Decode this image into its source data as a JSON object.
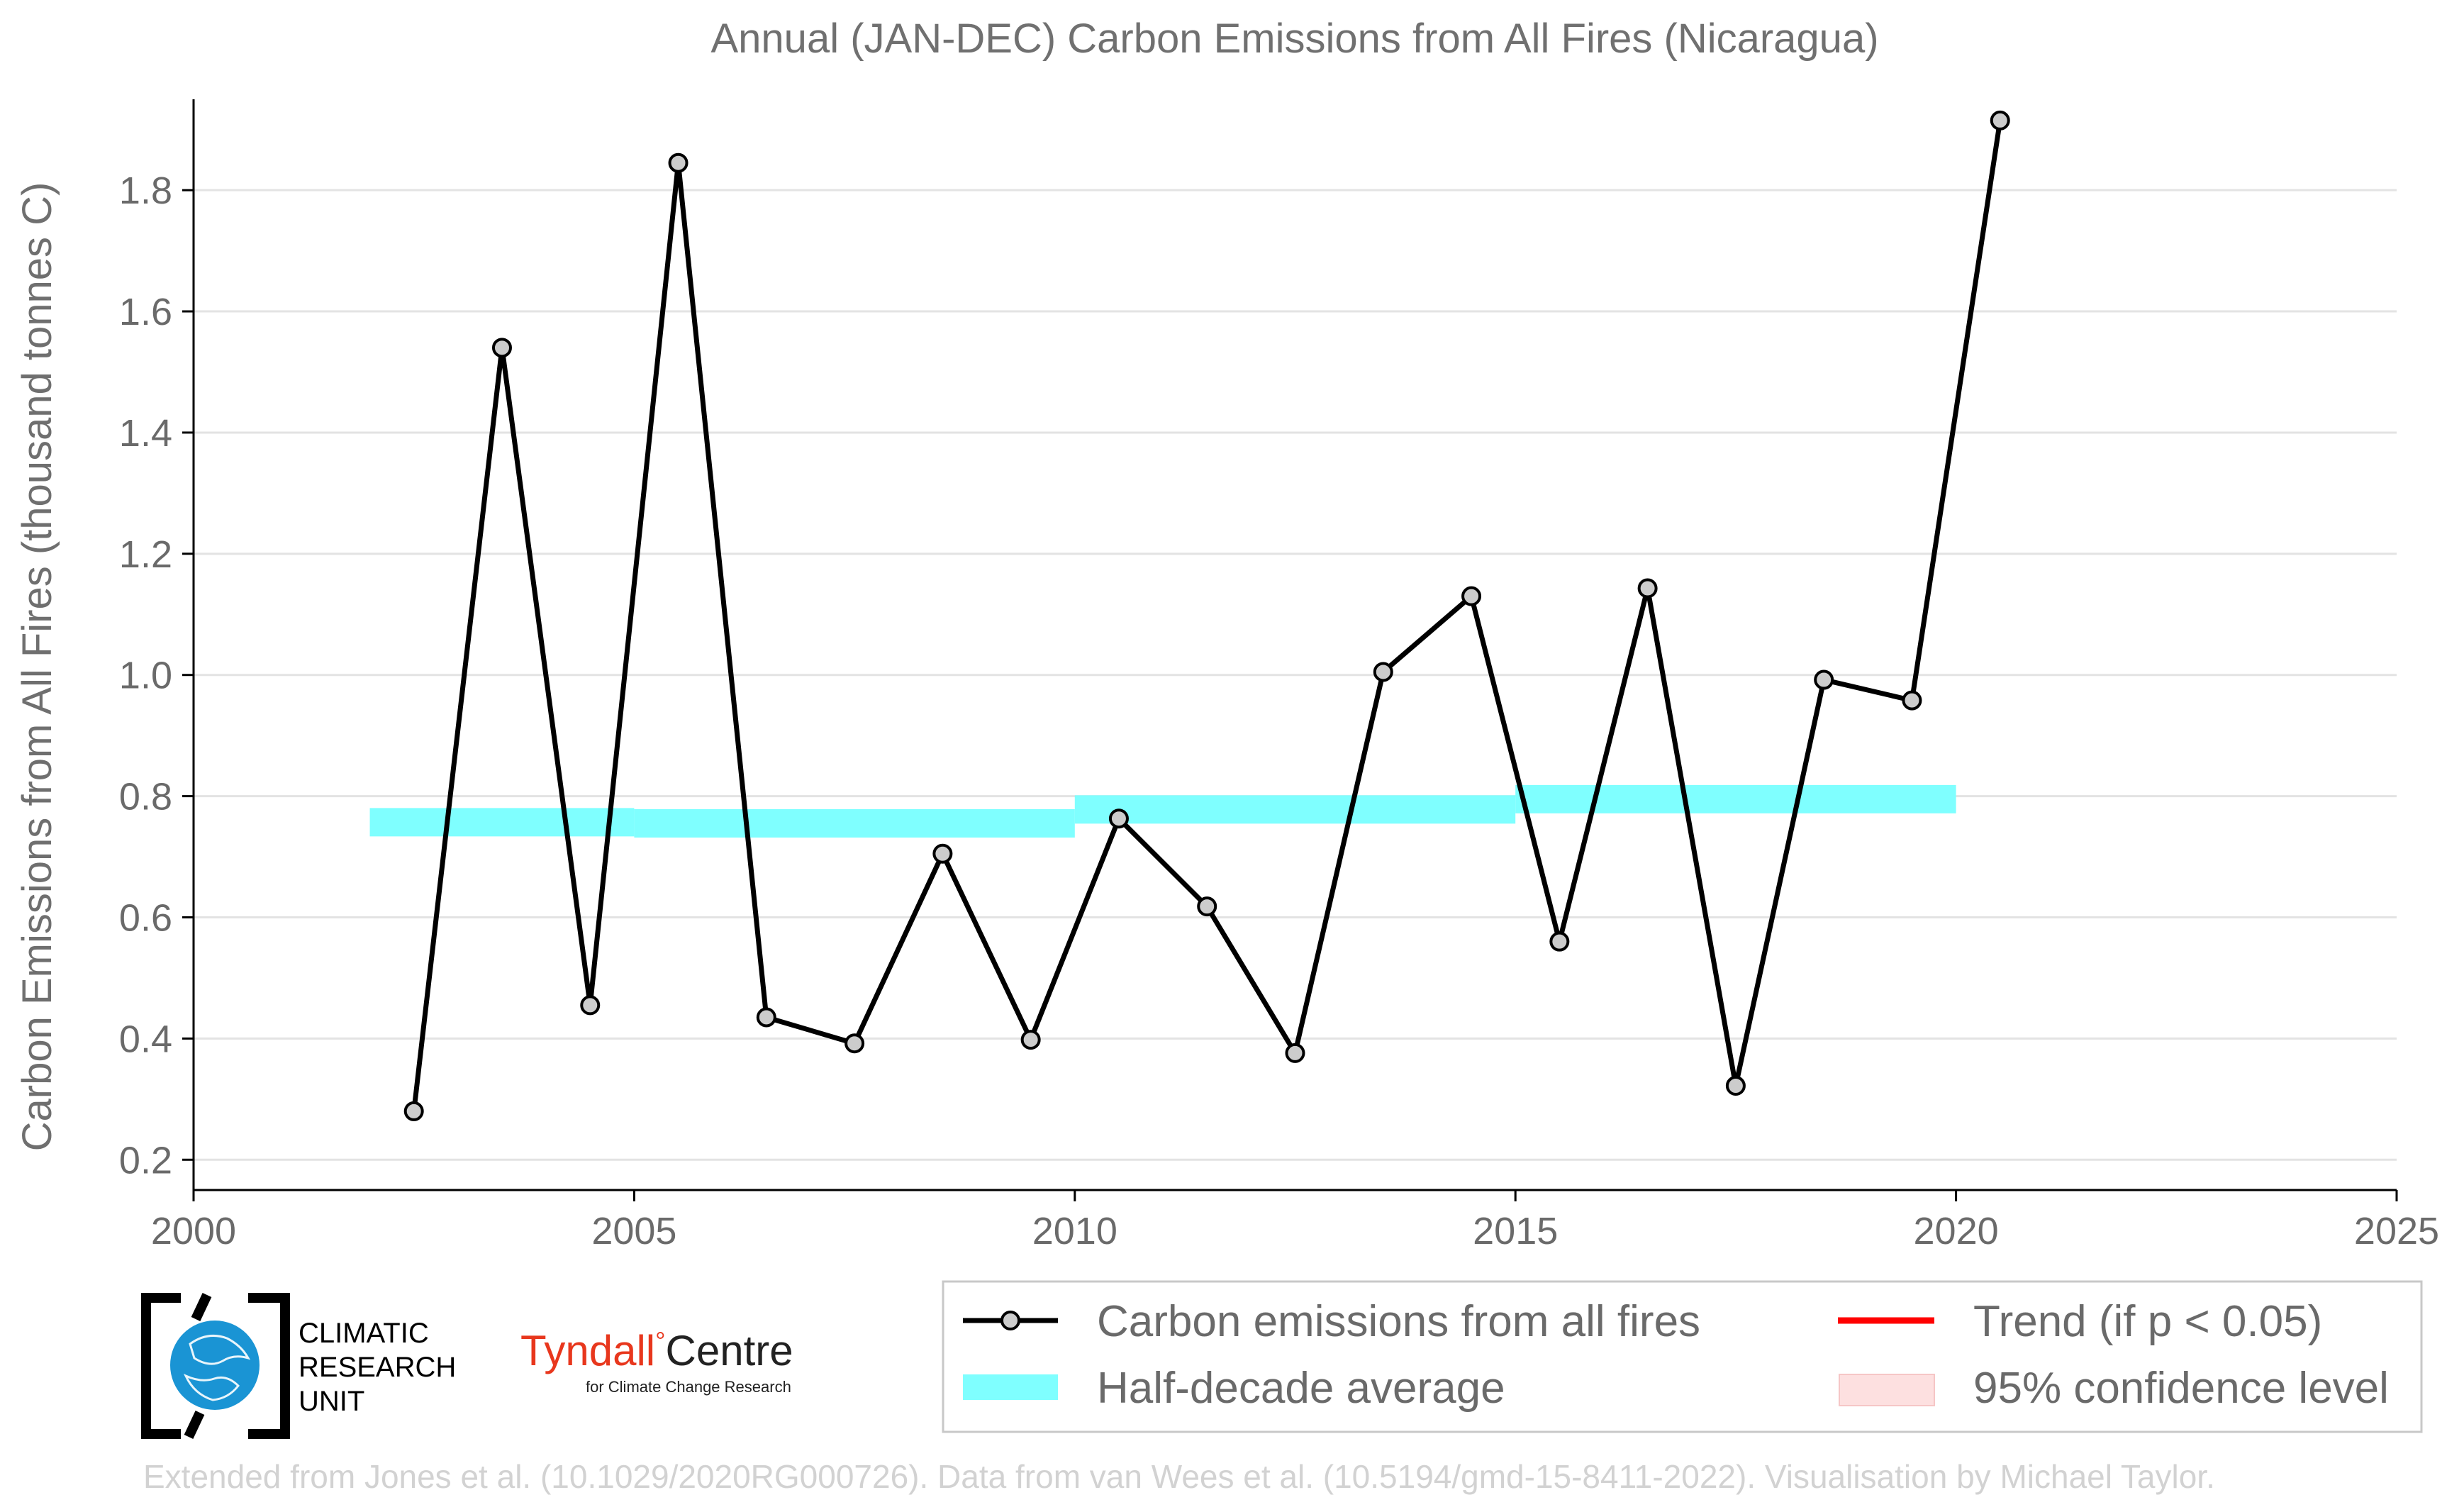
{
  "chart_data": {
    "type": "line",
    "title": "Annual (JAN-DEC) Carbon Emissions from All Fires (Nicaragua)",
    "ylabel": "Carbon Emissions from All Fires (thousand tonnes C)",
    "xlabel": "",
    "xlim": [
      2000,
      2025
    ],
    "ylim": [
      0.15,
      1.95
    ],
    "x_ticks": [
      2000,
      2005,
      2010,
      2015,
      2020,
      2025
    ],
    "x_tick_labels": [
      "2000",
      "2005",
      "2010",
      "2015",
      "2020",
      "2025"
    ],
    "y_ticks": [
      0.2,
      0.4,
      0.6,
      0.8,
      1.0,
      1.2,
      1.4,
      1.6,
      1.8
    ],
    "y_tick_labels": [
      "0.2",
      "0.4",
      "0.6",
      "0.8",
      "1.0",
      "1.2",
      "1.4",
      "1.6",
      "1.8"
    ],
    "grid": true,
    "series": [
      {
        "name": "Carbon emissions from all fires",
        "color": "#000000",
        "x": [
          2002.5,
          2003.5,
          2004.5,
          2005.5,
          2006.5,
          2007.5,
          2008.5,
          2009.5,
          2010.5,
          2011.5,
          2012.5,
          2013.5,
          2014.5,
          2015.5,
          2016.5,
          2017.5,
          2018.5,
          2019.5,
          2020.5
        ],
        "values": [
          0.28,
          1.54,
          0.455,
          1.845,
          0.435,
          0.392,
          0.705,
          0.398,
          0.763,
          0.618,
          0.376,
          1.005,
          1.13,
          0.56,
          1.143,
          0.322,
          0.992,
          0.958,
          1.915
        ]
      }
    ],
    "half_decade_average": {
      "name": "Half-decade average",
      "color": "#7fffff",
      "segments": [
        {
          "x0": 2002,
          "x1": 2005,
          "value": 0.757
        },
        {
          "x0": 2005,
          "x1": 2010,
          "value": 0.755
        },
        {
          "x0": 2010,
          "x1": 2015,
          "value": 0.778
        },
        {
          "x0": 2015,
          "x1": 2020,
          "value": 0.795
        }
      ]
    },
    "legend": {
      "placement": "bottom-right",
      "items": [
        {
          "label": "Carbon emissions from all fires",
          "kind": "line-marker",
          "color": "#000000"
        },
        {
          "label": "Trend (if p < 0.05)",
          "kind": "line",
          "color": "#ff0000"
        },
        {
          "label": "Half-decade average",
          "kind": "band",
          "color": "#7fffff"
        },
        {
          "label": "95% confidence level",
          "kind": "patch",
          "color": "#fde0e0"
        }
      ]
    }
  },
  "logos": {
    "cru": {
      "line1": "CLIMATIC",
      "line2": "RESEARCH",
      "line3": "UNIT"
    },
    "tyndall": {
      "name": "Tyndall",
      "degree": "°",
      "centre": "Centre",
      "sub": "for Climate Change Research"
    }
  },
  "footer": "Extended from Jones et al. (10.1029/2020RG000726). Data from van Wees et al. (10.5194/gmd-15-8411-2022). Visualisation by Michael Taylor."
}
